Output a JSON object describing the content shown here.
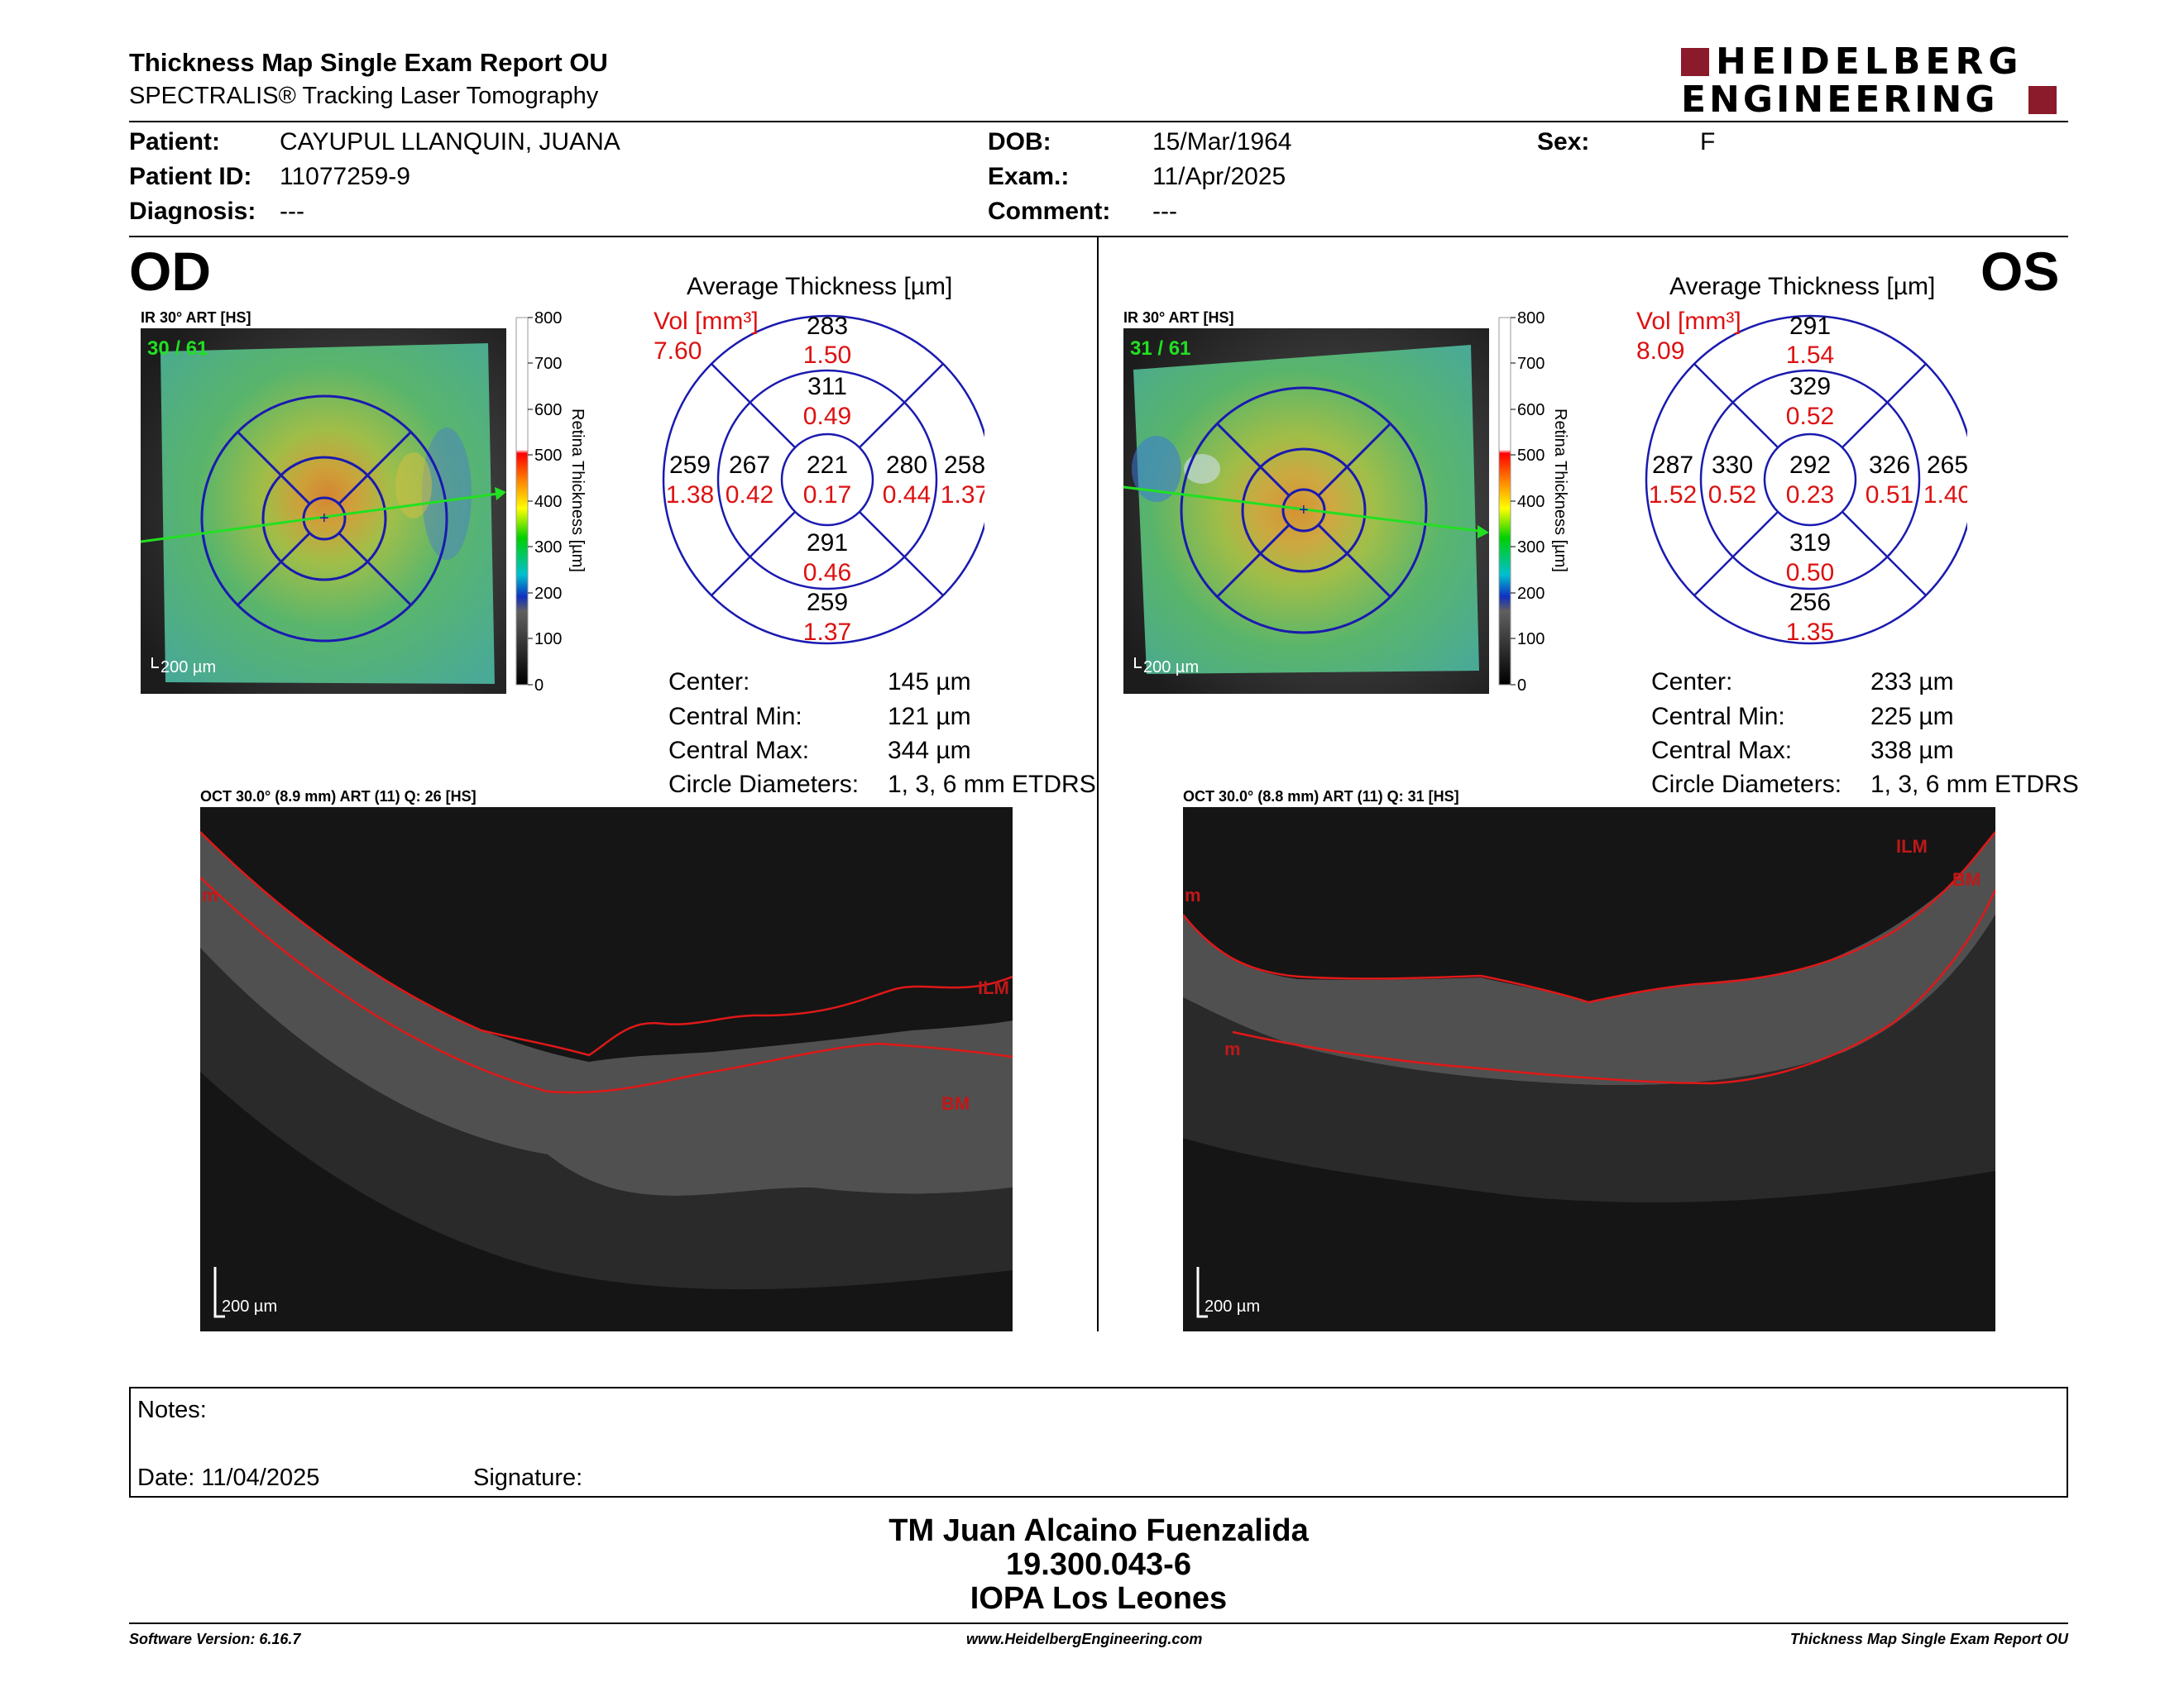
{
  "header": {
    "title": "Thickness Map Single Exam Report OU",
    "subtitle": "SPECTRALIS® Tracking Laser Tomography",
    "logo_line1": "HEIDELBERG",
    "logo_line2": "ENGINEERING",
    "brand_color": "#8b1a2b"
  },
  "patient": {
    "patient_label": "Patient:",
    "patient_value": "CAYUPUL LLANQUIN, JUANA",
    "id_label": "Patient ID:",
    "id_value": "11077259-9",
    "diag_label": "Diagnosis:",
    "diag_value": "---",
    "dob_label": "DOB:",
    "dob_value": "15/Mar/1964",
    "exam_label": "Exam.:",
    "exam_value": "11/Apr/2025",
    "comment_label": "Comment:",
    "comment_value": "---",
    "sex_label": "Sex:",
    "sex_value": "F"
  },
  "od": {
    "eye": "OD",
    "ir_label": "IR 30° ART [HS]",
    "frame": "30 / 61",
    "scale_bar": "200 µm",
    "oct_label": "OCT 30.0° (8.9 mm) ART (11) Q: 26 [HS]",
    "oct_scale": "200 µm",
    "seg_ilm": "ILM",
    "seg_bm": "BM",
    "seg_m": "m",
    "avg_title": "Average Thickness [µm]",
    "vol_label": "Vol [mm³]",
    "vol_value": "7.60",
    "grid": {
      "superior_outer": "283",
      "superior_outer_vol": "1.50",
      "superior_inner": "311",
      "superior_inner_vol": "0.49",
      "nasal_outer": "259",
      "nasal_outer_vol": "1.38",
      "nasal_inner": "267",
      "nasal_inner_vol": "0.42",
      "center": "221",
      "center_vol": "0.17",
      "temporal_inner": "280",
      "temporal_inner_vol": "0.44",
      "temporal_outer": "258",
      "temporal_outer_vol": "1.37",
      "inferior_inner": "291",
      "inferior_inner_vol": "0.46",
      "inferior_outer": "259",
      "inferior_outer_vol": "1.37"
    },
    "stats": {
      "center_label": "Center:",
      "center_value": "145 µm",
      "min_label": "Central Min:",
      "min_value": "121 µm",
      "max_label": "Central Max:",
      "max_value": "344 µm",
      "diam_label": "Circle Diameters:",
      "diam_value": "1, 3, 6 mm ETDRS"
    }
  },
  "os": {
    "eye": "OS",
    "ir_label": "IR 30° ART [HS]",
    "frame": "31 / 61",
    "scale_bar": "200 µm",
    "oct_label": "OCT 30.0° (8.8 mm) ART (11) Q: 31 [HS]",
    "oct_scale": "200 µm",
    "seg_ilm": "ILM",
    "seg_bm": "BM",
    "seg_m": "m",
    "avg_title": "Average Thickness [µm]",
    "vol_label": "Vol [mm³]",
    "vol_value": "8.09",
    "grid": {
      "superior_outer": "291",
      "superior_outer_vol": "1.54",
      "superior_inner": "329",
      "superior_inner_vol": "0.52",
      "nasal_outer": "287",
      "nasal_outer_vol": "1.52",
      "nasal_inner": "330",
      "nasal_inner_vol": "0.52",
      "center": "292",
      "center_vol": "0.23",
      "temporal_inner": "326",
      "temporal_inner_vol": "0.51",
      "temporal_outer": "265",
      "temporal_outer_vol": "1.40",
      "inferior_inner": "319",
      "inferior_inner_vol": "0.50",
      "inferior_outer": "256",
      "inferior_outer_vol": "1.35"
    },
    "stats": {
      "center_label": "Center:",
      "center_value": "233 µm",
      "min_label": "Central Min:",
      "min_value": "225 µm",
      "max_label": "Central Max:",
      "max_value": "338 µm",
      "diam_label": "Circle Diameters:",
      "diam_value": "1, 3, 6 mm ETDRS"
    }
  },
  "colorbar": {
    "title": "Retina Thickness [µm]",
    "ticks": [
      "800",
      "700",
      "600",
      "500",
      "400",
      "300",
      "200",
      "100",
      "0"
    ]
  },
  "notes": {
    "notes_label": "Notes:",
    "date_label": "Date: 11/04/2025",
    "signature_label": "Signature:"
  },
  "signature": {
    "line1": "TM Juan Alcaino Fuenzalida",
    "line2": "19.300.043-6",
    "line3": "IOPA Los Leones"
  },
  "footer": {
    "software": "Software Version: 6.16.7",
    "website": "www.HeidelbergEngineering.com",
    "report": "Thickness Map Single Exam Report OU"
  }
}
